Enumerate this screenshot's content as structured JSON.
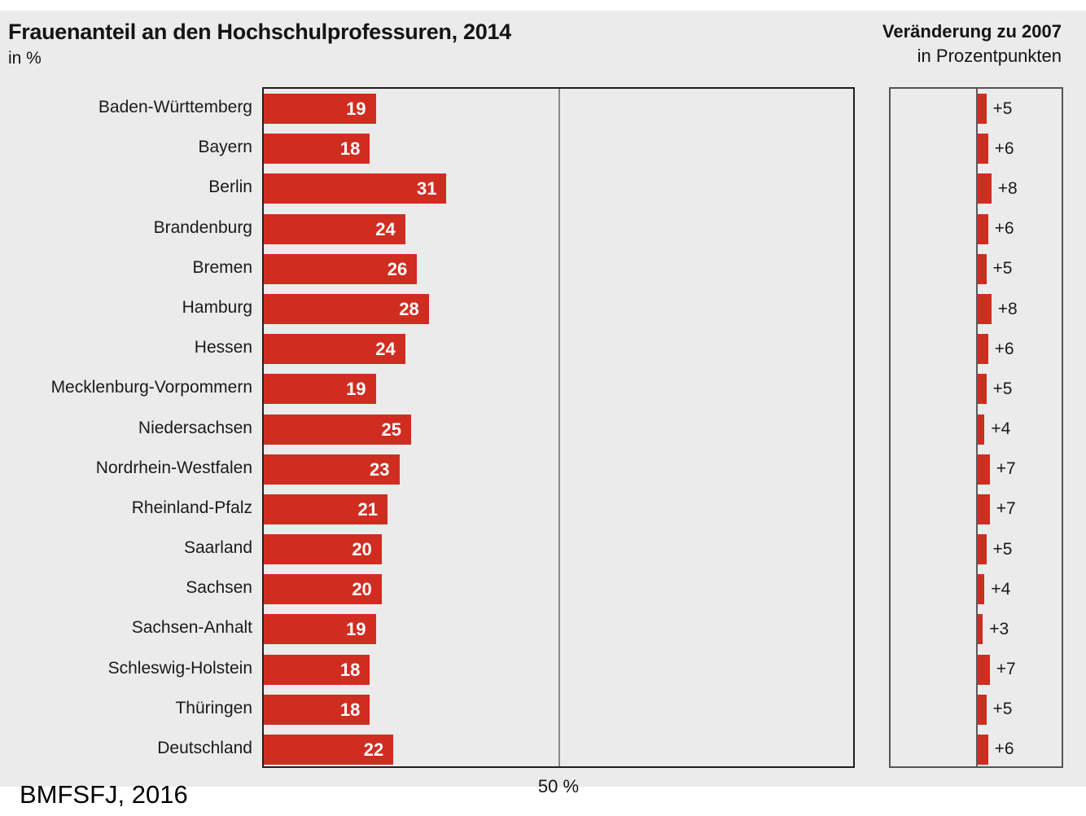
{
  "header": {
    "title": "Frauenanteil an den Hochschulprofessuren, 2014",
    "subtitle": "in %",
    "right_title": "Veränderung zu 2007",
    "right_subtitle": "in Prozentpunkten"
  },
  "axis": {
    "mid_label": "50 %"
  },
  "source": "BMFSFJ, 2016",
  "colors": {
    "bar": "#d02d21",
    "background": "#ebebeb",
    "frame": "#1f1f1f",
    "gridline": "#8a8a8a"
  },
  "chart_data": {
    "type": "bar",
    "orientation": "horizontal",
    "title": "Frauenanteil an den Hochschulprofessuren, 2014",
    "xlabel": "",
    "ylabel": "",
    "unit": "%",
    "xlim": [
      0,
      100
    ],
    "gridline_at": 50,
    "grid": true,
    "legend_position": "none",
    "categories": [
      "Baden-Württemberg",
      "Bayern",
      "Berlin",
      "Brandenburg",
      "Bremen",
      "Hamburg",
      "Hessen",
      "Mecklenburg-Vorpommern",
      "Niedersachsen",
      "Nordrhein-Westfalen",
      "Rheinland-Pfalz",
      "Saarland",
      "Sachsen",
      "Sachsen-Anhalt",
      "Schleswig-Holstein",
      "Thüringen",
      "Deutschland"
    ],
    "series": [
      {
        "name": "Frauenanteil an den Hochschulprofessuren 2014 (in %)",
        "values": [
          19,
          18,
          31,
          24,
          26,
          28,
          24,
          19,
          25,
          23,
          21,
          20,
          20,
          19,
          18,
          18,
          22
        ]
      },
      {
        "name": "Veränderung zu 2007 (in Prozentpunkten)",
        "values": [
          5,
          6,
          8,
          6,
          5,
          8,
          6,
          5,
          4,
          7,
          7,
          5,
          4,
          3,
          7,
          5,
          6
        ],
        "labels": [
          "+5",
          "+6",
          "+8",
          "+6",
          "+5",
          "+8",
          "+6",
          "+5",
          "+4",
          "+7",
          "+7",
          "+5",
          "+4",
          "+3",
          "+7",
          "+5",
          "+6"
        ]
      }
    ]
  }
}
